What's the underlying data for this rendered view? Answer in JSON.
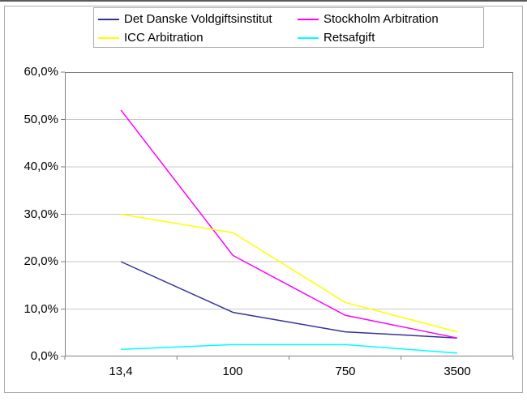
{
  "chart_data": {
    "type": "line",
    "title": "",
    "xlabel": "",
    "ylabel": "",
    "categories": [
      "13,4",
      "100",
      "750",
      "3500"
    ],
    "series": [
      {
        "name": "Det Danske Voldgiftsinstitut",
        "color": "#333399",
        "values": [
          20.0,
          9.3,
          5.2,
          3.9
        ]
      },
      {
        "name": "Stockholm Arbitration",
        "color": "#FF00FF",
        "values": [
          52.0,
          21.3,
          8.7,
          3.9
        ]
      },
      {
        "name": "ICC Arbitration",
        "color": "#FFFF00",
        "values": [
          30.0,
          26.1,
          11.4,
          5.2
        ]
      },
      {
        "name": "Retsafgift",
        "color": "#00FFFF",
        "values": [
          1.5,
          2.5,
          2.5,
          0.7
        ]
      }
    ],
    "ylim": [
      0,
      60
    ],
    "ytick_step": 10,
    "ytick_labels": [
      "60,0%",
      "50,0%",
      "40,0%",
      "30,0%",
      "20,0%",
      "10,0%",
      "0,0%"
    ],
    "value_format": "danish-percent",
    "grid": true,
    "legend_position": "top",
    "colors": {
      "axis_frame": "#808080",
      "gridline": "#c9c9c9",
      "legend_border": "#aeaeae",
      "chart_border": "#aeaeae",
      "background": "#ffffff"
    }
  }
}
